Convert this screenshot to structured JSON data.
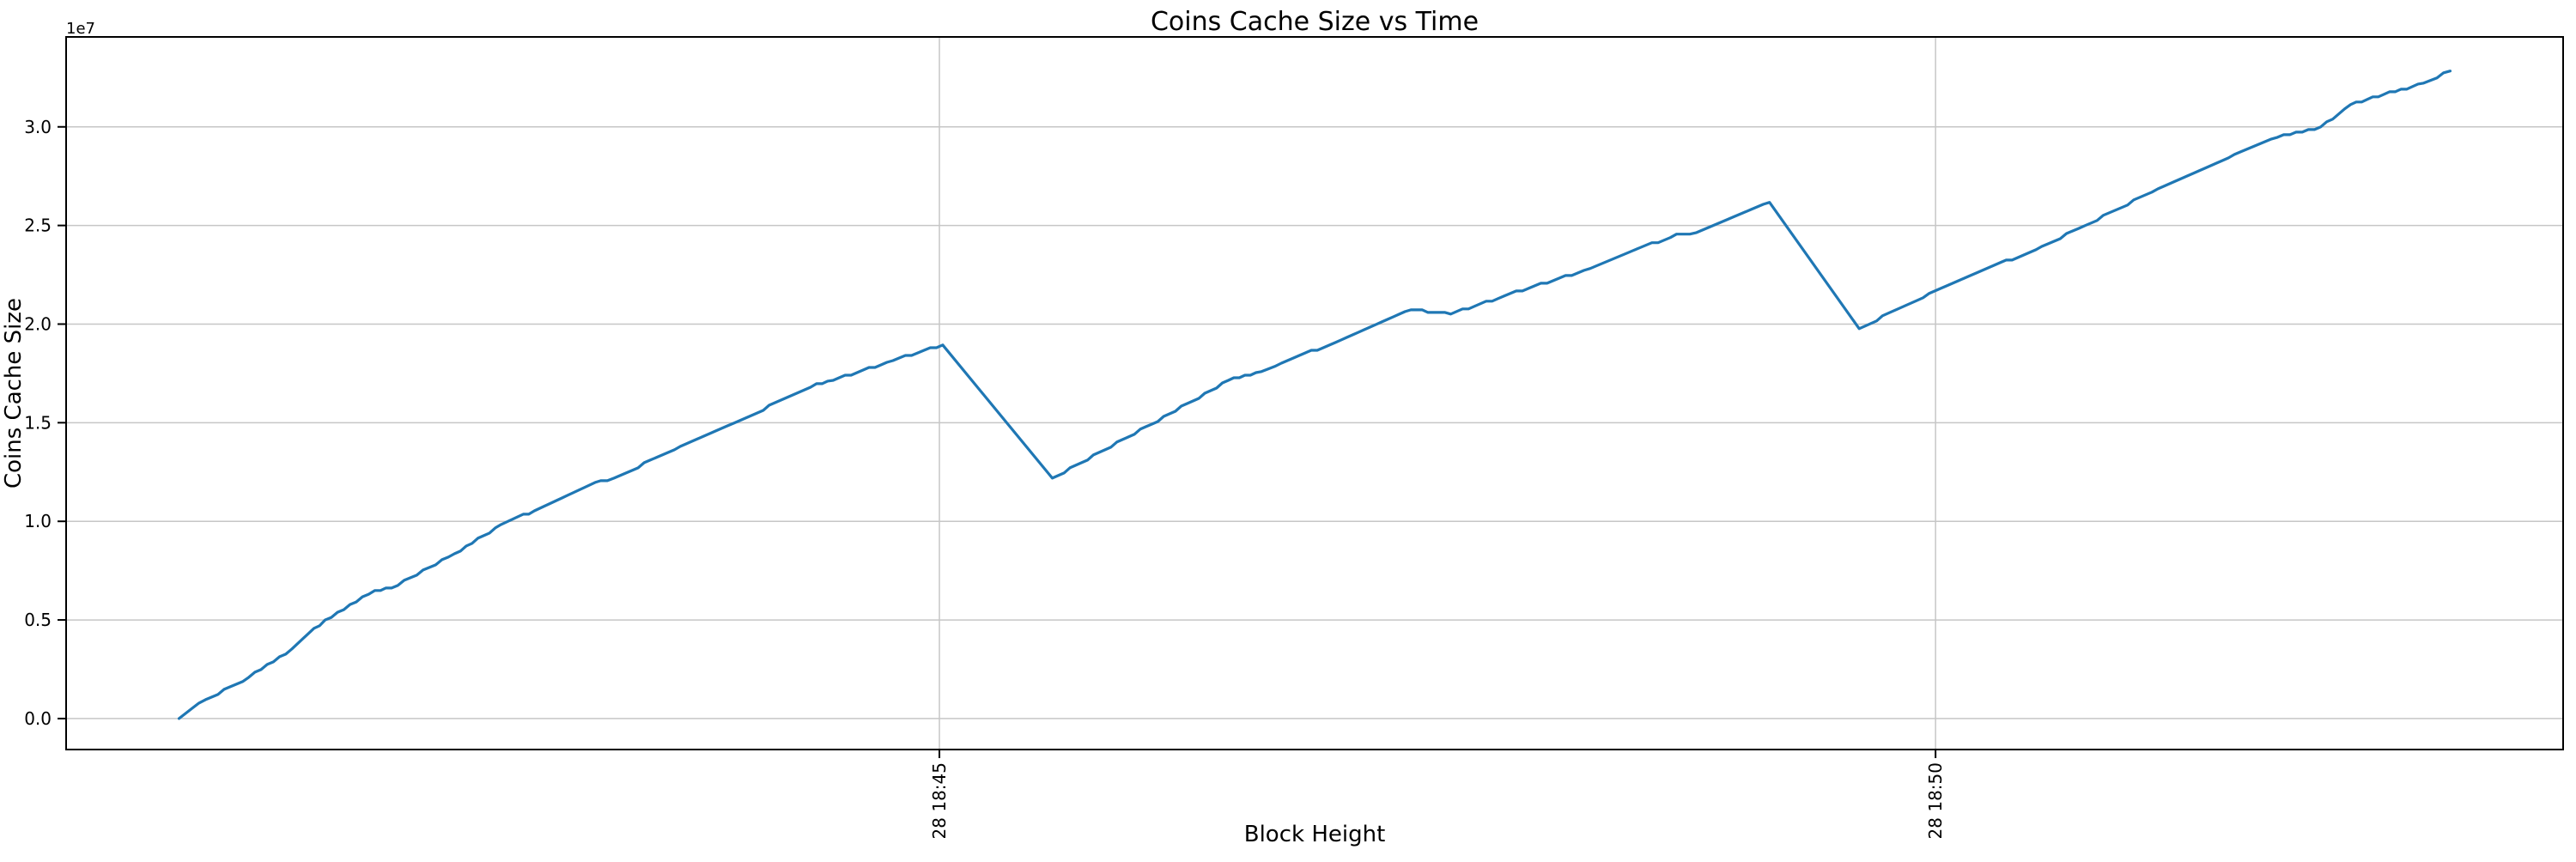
{
  "chart_data": {
    "type": "line",
    "title": "Coins Cache Size vs Time",
    "xlabel": "Block Height",
    "ylabel": "Coins Cache Size",
    "y_offset_label": "1e7",
    "grid": true,
    "legend": "none",
    "background_color": "#ffffff",
    "line_color": "#1f77b4",
    "grid_color": "#c6c6c6",
    "spine_color": "#000000",
    "x_ticks": [
      {
        "label": "28 18:45",
        "time": "18:45:00"
      },
      {
        "label": "28 18:50",
        "time": "18:50:00"
      }
    ],
    "y_ticks": [
      {
        "label": "0.0",
        "value": 0
      },
      {
        "label": "0.5",
        "value": 5000000
      },
      {
        "label": "1.0",
        "value": 10000000
      },
      {
        "label": "1.5",
        "value": 15000000
      },
      {
        "label": "2.0",
        "value": 20000000
      },
      {
        "label": "2.5",
        "value": 25000000
      },
      {
        "label": "3.0",
        "value": 30000000
      }
    ],
    "xlim_time": [
      "18:40:37",
      "18:53:09"
    ],
    "ylim": [
      -1570000,
      34560000
    ],
    "series": [
      {
        "name": "coins-cache-size",
        "points": [
          [
            "18:41:11",
            0
          ],
          [
            "18:41:19",
            960000
          ],
          [
            "18:41:32",
            2090000
          ],
          [
            "18:41:45",
            3530000
          ],
          [
            "18:41:55",
            5000000
          ],
          [
            "18:42:10",
            6490000
          ],
          [
            "18:42:15",
            6620000
          ],
          [
            "18:42:34",
            8360000
          ],
          [
            "18:42:48",
            9840000
          ],
          [
            "18:42:58",
            10530000
          ],
          [
            "18:43:08",
            11320000
          ],
          [
            "18:43:18",
            12060000
          ],
          [
            "18:43:22",
            12190000
          ],
          [
            "18:43:42",
            13800000
          ],
          [
            "18:43:58",
            14970000
          ],
          [
            "18:44:23",
            16980000
          ],
          [
            "18:44:28",
            17150000
          ],
          [
            "18:44:46",
            18150000
          ],
          [
            "18:45:01",
            18940000
          ],
          [
            "18:45:34",
            12190000
          ],
          [
            "18:46:04",
            14930000
          ],
          [
            "18:46:27",
            17150000
          ],
          [
            "18:46:37",
            17590000
          ],
          [
            "18:46:43",
            18020000
          ],
          [
            "18:47:01",
            19200000
          ],
          [
            "18:47:22",
            20720000
          ],
          [
            "18:47:34",
            20510000
          ],
          [
            "18:47:50",
            21420000
          ],
          [
            "18:48:16",
            22820000
          ],
          [
            "18:48:42",
            24560000
          ],
          [
            "18:48:48",
            24640000
          ],
          [
            "18:49:10",
            26170000
          ],
          [
            "18:49:37",
            19770000
          ],
          [
            "18:49:58",
            21550000
          ],
          [
            "18:50:32",
            23940000
          ],
          [
            "18:50:45",
            24990000
          ],
          [
            "18:51:07",
            26860000
          ],
          [
            "18:51:30",
            28600000
          ],
          [
            "18:51:43",
            29470000
          ],
          [
            "18:51:56",
            30000000
          ],
          [
            "18:52:05",
            31130000
          ],
          [
            "18:52:15",
            31650000
          ],
          [
            "18:52:27",
            32220000
          ],
          [
            "18:52:35",
            32830000
          ]
        ]
      }
    ]
  }
}
